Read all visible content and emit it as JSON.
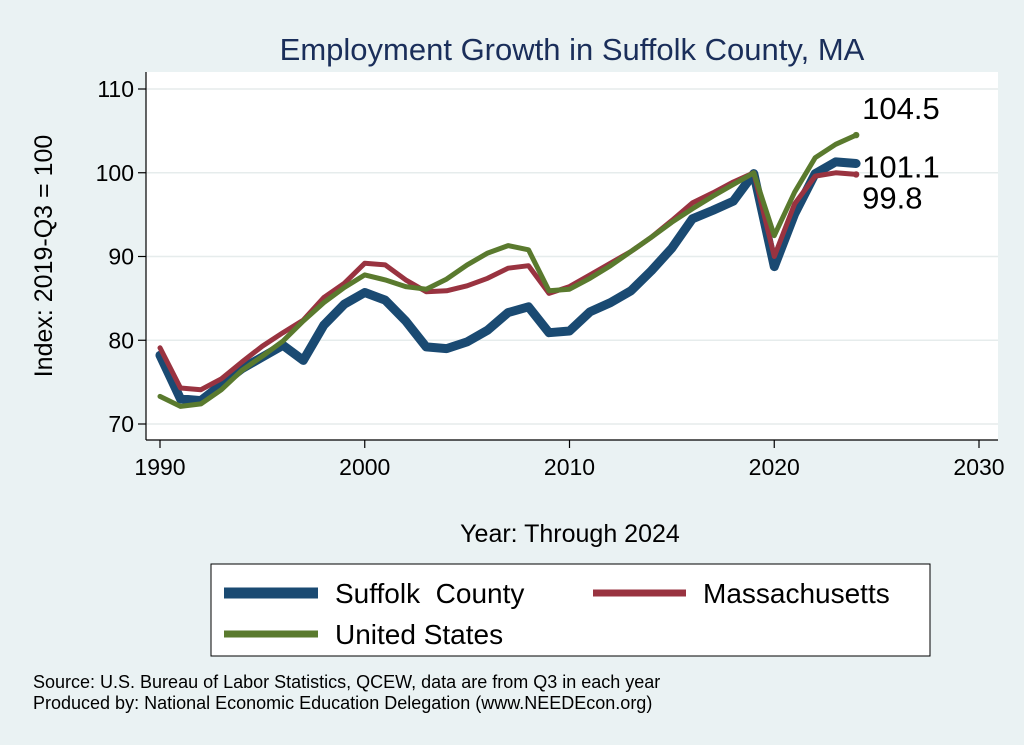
{
  "chart_data": {
    "type": "line",
    "title": "Employment Growth in Suffolk County, MA",
    "xlabel": "Year: Through 2024",
    "ylabel": "Index: 2019-Q3 = 100",
    "xlim": [
      1990,
      2030
    ],
    "ylim": [
      70,
      110
    ],
    "xticks": [
      "1990",
      "2000",
      "2010",
      "2020",
      "2030"
    ],
    "yticks": [
      "70",
      "80",
      "90",
      "100",
      "110"
    ],
    "grid": true,
    "legend_position": "bottom",
    "x": [
      1990,
      1991,
      1992,
      1993,
      1994,
      1995,
      1996,
      1997,
      1998,
      1999,
      2000,
      2001,
      2002,
      2003,
      2004,
      2005,
      2006,
      2007,
      2008,
      2009,
      2010,
      2011,
      2012,
      2013,
      2014,
      2015,
      2016,
      2017,
      2018,
      2019,
      2020,
      2021,
      2022,
      2023,
      2024
    ],
    "series": [
      {
        "name": "Suffolk  County",
        "color": "#1a4a72",
        "values": [
          78.2,
          73.0,
          72.8,
          74.7,
          76.6,
          78.0,
          79.4,
          77.6,
          81.8,
          84.3,
          85.7,
          84.8,
          82.3,
          79.2,
          79.0,
          79.8,
          81.2,
          83.3,
          84.0,
          80.9,
          81.1,
          83.4,
          84.5,
          85.9,
          88.3,
          91.0,
          94.5,
          95.5,
          96.6,
          99.9,
          88.8,
          95.1,
          99.9,
          101.3,
          101.1
        ],
        "end_label": "101.1"
      },
      {
        "name": "Massachusetts",
        "color": "#993340",
        "values": [
          79.1,
          74.3,
          74.1,
          75.4,
          77.4,
          79.3,
          80.9,
          82.4,
          85.1,
          86.8,
          89.2,
          89.0,
          87.2,
          85.8,
          85.9,
          86.5,
          87.4,
          88.6,
          88.9,
          85.6,
          86.4,
          87.8,
          89.2,
          90.6,
          92.3,
          94.3,
          96.4,
          97.6,
          98.9,
          100.0,
          90.0,
          96.3,
          99.6,
          100.0,
          99.8
        ],
        "end_label": "99.8"
      },
      {
        "name": "United States",
        "color": "#5a7a2e",
        "values": [
          73.3,
          72.1,
          72.4,
          74.1,
          76.4,
          78.1,
          79.9,
          82.3,
          84.5,
          86.3,
          87.8,
          87.2,
          86.4,
          86.1,
          87.3,
          89.0,
          90.4,
          91.3,
          90.8,
          85.9,
          86.1,
          87.4,
          88.9,
          90.6,
          92.3,
          94.1,
          95.7,
          97.2,
          98.6,
          100.0,
          92.5,
          97.7,
          101.8,
          103.4,
          104.5
        ],
        "end_label": "104.5"
      }
    ]
  },
  "footnotes": [
    "Source: U.S. Bureau of Labor Statistics, QCEW, data are from Q3 in each year",
    "Produced by: National Economic Education Delegation (www.NEEDEcon.org)"
  ]
}
